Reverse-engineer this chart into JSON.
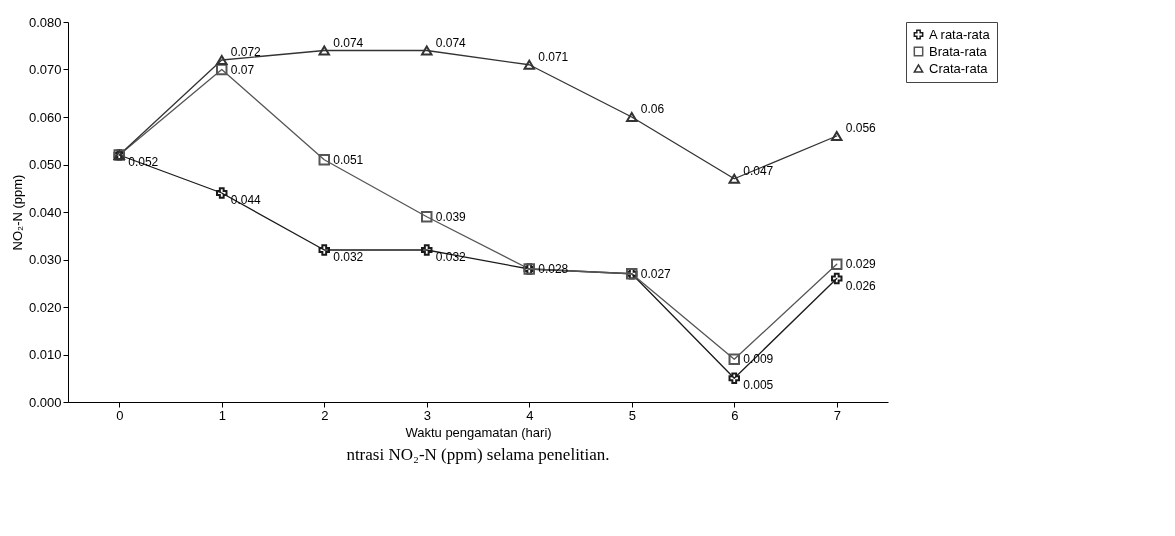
{
  "chart_data": {
    "type": "line",
    "xlabel": "Waktu pengamatan (hari)",
    "ylabel": "NO₂-N (ppm)",
    "categories": [
      "0",
      "1",
      "2",
      "3",
      "4",
      "5",
      "6",
      "7"
    ],
    "ylim": [
      0,
      0.08
    ],
    "yticks": [
      {
        "value": 0,
        "label": "0.000"
      },
      {
        "value": 0.01,
        "label": "0.010"
      },
      {
        "value": 0.02,
        "label": "0.020"
      },
      {
        "value": 0.03,
        "label": "0.030"
      },
      {
        "value": 0.04,
        "label": "0.040"
      },
      {
        "value": 0.05,
        "label": "0.050"
      },
      {
        "value": 0.06,
        "label": "0.060"
      },
      {
        "value": 0.07,
        "label": "0.070"
      },
      {
        "value": 0.08,
        "label": "0.080"
      }
    ],
    "series": [
      {
        "name": "A rata-rata",
        "color": "#1a1a1a",
        "marker": "cross",
        "values": [
          0.052,
          0.044,
          0.032,
          0.032,
          0.028,
          0.027,
          0.005,
          0.026
        ],
        "value_labels": [
          "0.052",
          "0.044",
          "0.032",
          "0.032",
          null,
          null,
          "0.005",
          "0.026"
        ]
      },
      {
        "name": "Brata-rata",
        "color": "#555555",
        "marker": "square",
        "values": [
          0.052,
          0.07,
          0.051,
          0.039,
          0.028,
          0.027,
          0.009,
          0.029
        ],
        "value_labels": [
          null,
          "0.07",
          "0.051",
          "0.039",
          "0.028",
          "0.027",
          "0.009",
          "0.029"
        ]
      },
      {
        "name": "Crata-rata",
        "color": "#333333",
        "marker": "triangle",
        "values": [
          0.052,
          0.072,
          0.074,
          0.074,
          0.071,
          0.06,
          0.047,
          0.056
        ],
        "value_labels": [
          null,
          "0.072",
          "0.074",
          "0.074",
          "0.071",
          "0.06",
          "0.047",
          "0.056"
        ]
      }
    ],
    "legend": "right",
    "line_style": "solid",
    "grid": false,
    "annotations": [
      "ntrasi NO₂-N (ppm) selama penelitian."
    ]
  }
}
